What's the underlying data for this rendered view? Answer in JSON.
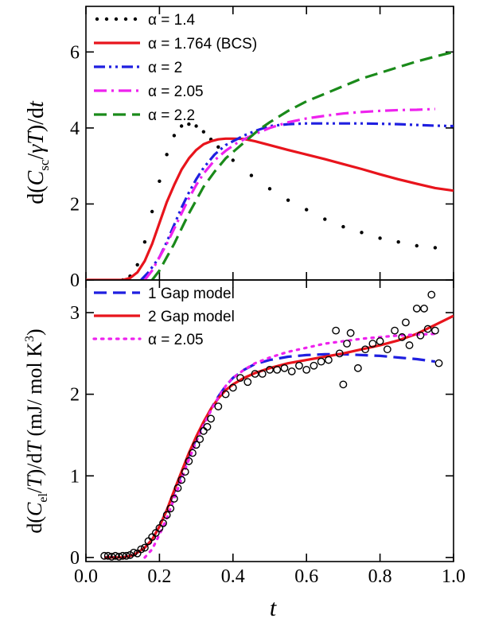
{
  "chart_data": [
    {
      "type": "line",
      "panel": "top",
      "ylabel": "d(C_sc/γT)/dt",
      "xlim": [
        0.0,
        1.0
      ],
      "ylim": [
        0,
        7.2
      ],
      "y_ticks": [
        "0",
        "2",
        "4",
        "6"
      ],
      "y_tick_values": [
        0,
        2,
        4,
        6
      ],
      "legend_position": "top-left",
      "series": [
        {
          "name": "α = 1.4",
          "style": "dotted",
          "color": "#000000",
          "x": [
            0.1,
            0.12,
            0.14,
            0.16,
            0.18,
            0.2,
            0.22,
            0.24,
            0.26,
            0.28,
            0.3,
            0.32,
            0.34,
            0.36,
            0.4,
            0.45,
            0.5,
            0.55,
            0.6,
            0.65,
            0.7,
            0.75,
            0.8,
            0.85,
            0.9,
            0.95
          ],
          "y": [
            0.0,
            0.1,
            0.4,
            1.0,
            1.8,
            2.6,
            3.3,
            3.8,
            4.05,
            4.1,
            4.05,
            3.9,
            3.7,
            3.5,
            3.15,
            2.75,
            2.4,
            2.1,
            1.85,
            1.6,
            1.4,
            1.25,
            1.1,
            1.0,
            0.9,
            0.85
          ]
        },
        {
          "name": "α = 1.764 (BCS)",
          "style": "solid",
          "color": "#e8141c",
          "x": [
            0.0,
            0.05,
            0.1,
            0.12,
            0.14,
            0.16,
            0.18,
            0.2,
            0.22,
            0.24,
            0.26,
            0.28,
            0.3,
            0.32,
            0.34,
            0.36,
            0.38,
            0.4,
            0.43,
            0.46,
            0.5,
            0.55,
            0.6,
            0.65,
            0.7,
            0.75,
            0.8,
            0.85,
            0.9,
            0.95,
            1.0
          ],
          "y": [
            0.0,
            0.0,
            0.0,
            0.05,
            0.2,
            0.5,
            0.95,
            1.5,
            2.05,
            2.5,
            2.9,
            3.2,
            3.42,
            3.57,
            3.65,
            3.7,
            3.72,
            3.72,
            3.71,
            3.65,
            3.55,
            3.42,
            3.3,
            3.18,
            3.05,
            2.92,
            2.78,
            2.65,
            2.53,
            2.42,
            2.35
          ]
        },
        {
          "name": "α = 2",
          "style": "dash-dot-dot",
          "color": "#1f1fe0",
          "x": [
            0.15,
            0.17,
            0.2,
            0.22,
            0.24,
            0.26,
            0.28,
            0.3,
            0.32,
            0.35,
            0.38,
            0.4,
            0.43,
            0.46,
            0.5,
            0.55,
            0.6,
            0.65,
            0.7,
            0.75,
            0.8,
            0.85,
            0.9,
            0.95,
            1.0
          ],
          "y": [
            0.0,
            0.2,
            0.6,
            1.0,
            1.45,
            1.9,
            2.3,
            2.65,
            2.95,
            3.3,
            3.55,
            3.65,
            3.8,
            3.92,
            4.05,
            4.1,
            4.12,
            4.12,
            4.12,
            4.12,
            4.11,
            4.1,
            4.08,
            4.06,
            4.05
          ]
        },
        {
          "name": "α = 2.05",
          "style": "dash-dot",
          "color": "#ee22ee",
          "x": [
            0.16,
            0.18,
            0.2,
            0.22,
            0.24,
            0.26,
            0.28,
            0.3,
            0.32,
            0.35,
            0.38,
            0.41,
            0.44,
            0.47,
            0.5,
            0.55,
            0.6,
            0.65,
            0.7,
            0.75,
            0.8,
            0.85,
            0.9,
            0.95
          ],
          "y": [
            0.0,
            0.25,
            0.6,
            0.95,
            1.35,
            1.75,
            2.15,
            2.5,
            2.8,
            3.15,
            3.4,
            3.6,
            3.75,
            3.88,
            4.0,
            4.15,
            4.25,
            4.32,
            4.38,
            4.42,
            4.45,
            4.47,
            4.48,
            4.5
          ]
        },
        {
          "name": "α = 2.2",
          "style": "dashed",
          "color": "#1a8a1a",
          "x": [
            0.18,
            0.2,
            0.22,
            0.24,
            0.26,
            0.28,
            0.3,
            0.32,
            0.35,
            0.38,
            0.41,
            0.44,
            0.47,
            0.5,
            0.55,
            0.6,
            0.65,
            0.7,
            0.75,
            0.8,
            0.85,
            0.9,
            0.95,
            1.0
          ],
          "y": [
            0.0,
            0.25,
            0.6,
            0.95,
            1.35,
            1.75,
            2.1,
            2.45,
            2.85,
            3.2,
            3.45,
            3.7,
            3.95,
            4.15,
            4.45,
            4.7,
            4.9,
            5.1,
            5.3,
            5.45,
            5.6,
            5.75,
            5.88,
            6.0
          ]
        }
      ]
    },
    {
      "type": "line",
      "panel": "bottom",
      "ylabel": "d(C_el/T)/dT (mJ/ mol K^3)",
      "xlabel": "t",
      "xlim": [
        0.0,
        1.0
      ],
      "ylim": [
        -0.05,
        3.4
      ],
      "x_ticks": [
        "0.0",
        "0.2",
        "0.4",
        "0.6",
        "0.8",
        "1.0"
      ],
      "x_tick_values": [
        0.0,
        0.2,
        0.4,
        0.6,
        0.8,
        1.0
      ],
      "y_ticks": [
        "0",
        "1",
        "2",
        "3"
      ],
      "y_tick_values": [
        0,
        1,
        2,
        3
      ],
      "legend_position": "top-left",
      "series": [
        {
          "name": "1 Gap model",
          "style": "dashed",
          "color": "#1f1fe0",
          "x": [
            0.05,
            0.1,
            0.13,
            0.16,
            0.18,
            0.2,
            0.22,
            0.24,
            0.26,
            0.28,
            0.3,
            0.32,
            0.34,
            0.36,
            0.38,
            0.4,
            0.43,
            0.46,
            0.5,
            0.55,
            0.6,
            0.65,
            0.7,
            0.75,
            0.8,
            0.85,
            0.9,
            0.95
          ],
          "y": [
            0.0,
            0.0,
            0.03,
            0.12,
            0.22,
            0.38,
            0.58,
            0.8,
            1.02,
            1.25,
            1.45,
            1.65,
            1.82,
            1.97,
            2.1,
            2.2,
            2.3,
            2.37,
            2.42,
            2.46,
            2.48,
            2.49,
            2.49,
            2.48,
            2.47,
            2.45,
            2.43,
            2.4
          ]
        },
        {
          "name": "2 Gap model",
          "style": "solid",
          "color": "#e8141c",
          "x": [
            0.05,
            0.1,
            0.13,
            0.16,
            0.18,
            0.2,
            0.22,
            0.24,
            0.26,
            0.28,
            0.3,
            0.32,
            0.34,
            0.36,
            0.38,
            0.4,
            0.43,
            0.46,
            0.5,
            0.55,
            0.6,
            0.65,
            0.7,
            0.75,
            0.8,
            0.85,
            0.9,
            0.95,
            1.0
          ],
          "y": [
            0.0,
            0.0,
            0.03,
            0.12,
            0.22,
            0.38,
            0.58,
            0.82,
            1.05,
            1.28,
            1.48,
            1.66,
            1.82,
            1.95,
            2.05,
            2.12,
            2.2,
            2.26,
            2.32,
            2.38,
            2.42,
            2.46,
            2.5,
            2.55,
            2.6,
            2.66,
            2.74,
            2.85,
            2.96
          ]
        },
        {
          "name": "α = 2.05",
          "style": "dotted",
          "color": "#ee22ee",
          "x": [
            0.16,
            0.18,
            0.2,
            0.22,
            0.24,
            0.26,
            0.28,
            0.3,
            0.32,
            0.34,
            0.36,
            0.38,
            0.4,
            0.43,
            0.46,
            0.5,
            0.55,
            0.6,
            0.65,
            0.7,
            0.75,
            0.8,
            0.85,
            0.9,
            0.95
          ],
          "y": [
            0.0,
            0.1,
            0.28,
            0.48,
            0.72,
            0.96,
            1.2,
            1.42,
            1.62,
            1.8,
            1.96,
            2.1,
            2.2,
            2.3,
            2.38,
            2.45,
            2.52,
            2.57,
            2.62,
            2.65,
            2.68,
            2.7,
            2.72,
            2.73,
            2.74
          ]
        },
        {
          "name": "",
          "style": "open-circles",
          "color": "#000000",
          "x": [
            0.05,
            0.06,
            0.07,
            0.08,
            0.09,
            0.1,
            0.11,
            0.12,
            0.13,
            0.14,
            0.15,
            0.16,
            0.17,
            0.18,
            0.19,
            0.2,
            0.21,
            0.22,
            0.23,
            0.24,
            0.25,
            0.26,
            0.27,
            0.28,
            0.29,
            0.3,
            0.31,
            0.32,
            0.33,
            0.34,
            0.36,
            0.38,
            0.4,
            0.42,
            0.44,
            0.46,
            0.48,
            0.5,
            0.52,
            0.54,
            0.56,
            0.58,
            0.6,
            0.62,
            0.64,
            0.66,
            0.68,
            0.69,
            0.7,
            0.71,
            0.72,
            0.74,
            0.76,
            0.78,
            0.8,
            0.82,
            0.84,
            0.86,
            0.87,
            0.88,
            0.9,
            0.91,
            0.92,
            0.93,
            0.94,
            0.95,
            0.96
          ],
          "y": [
            0.02,
            0.02,
            0.01,
            0.02,
            0.01,
            0.02,
            0.02,
            0.03,
            0.06,
            0.05,
            0.1,
            0.12,
            0.2,
            0.25,
            0.3,
            0.36,
            0.42,
            0.52,
            0.6,
            0.72,
            0.85,
            0.95,
            1.05,
            1.18,
            1.28,
            1.38,
            1.45,
            1.55,
            1.6,
            1.7,
            1.85,
            2.0,
            2.08,
            2.2,
            2.15,
            2.25,
            2.25,
            2.3,
            2.3,
            2.32,
            2.28,
            2.35,
            2.3,
            2.35,
            2.4,
            2.42,
            2.78,
            2.5,
            2.12,
            2.62,
            2.75,
            2.32,
            2.55,
            2.62,
            2.65,
            2.55,
            2.78,
            2.7,
            2.88,
            2.6,
            3.05,
            2.72,
            3.05,
            2.8,
            3.22,
            2.78,
            2.38
          ]
        }
      ]
    }
  ]
}
